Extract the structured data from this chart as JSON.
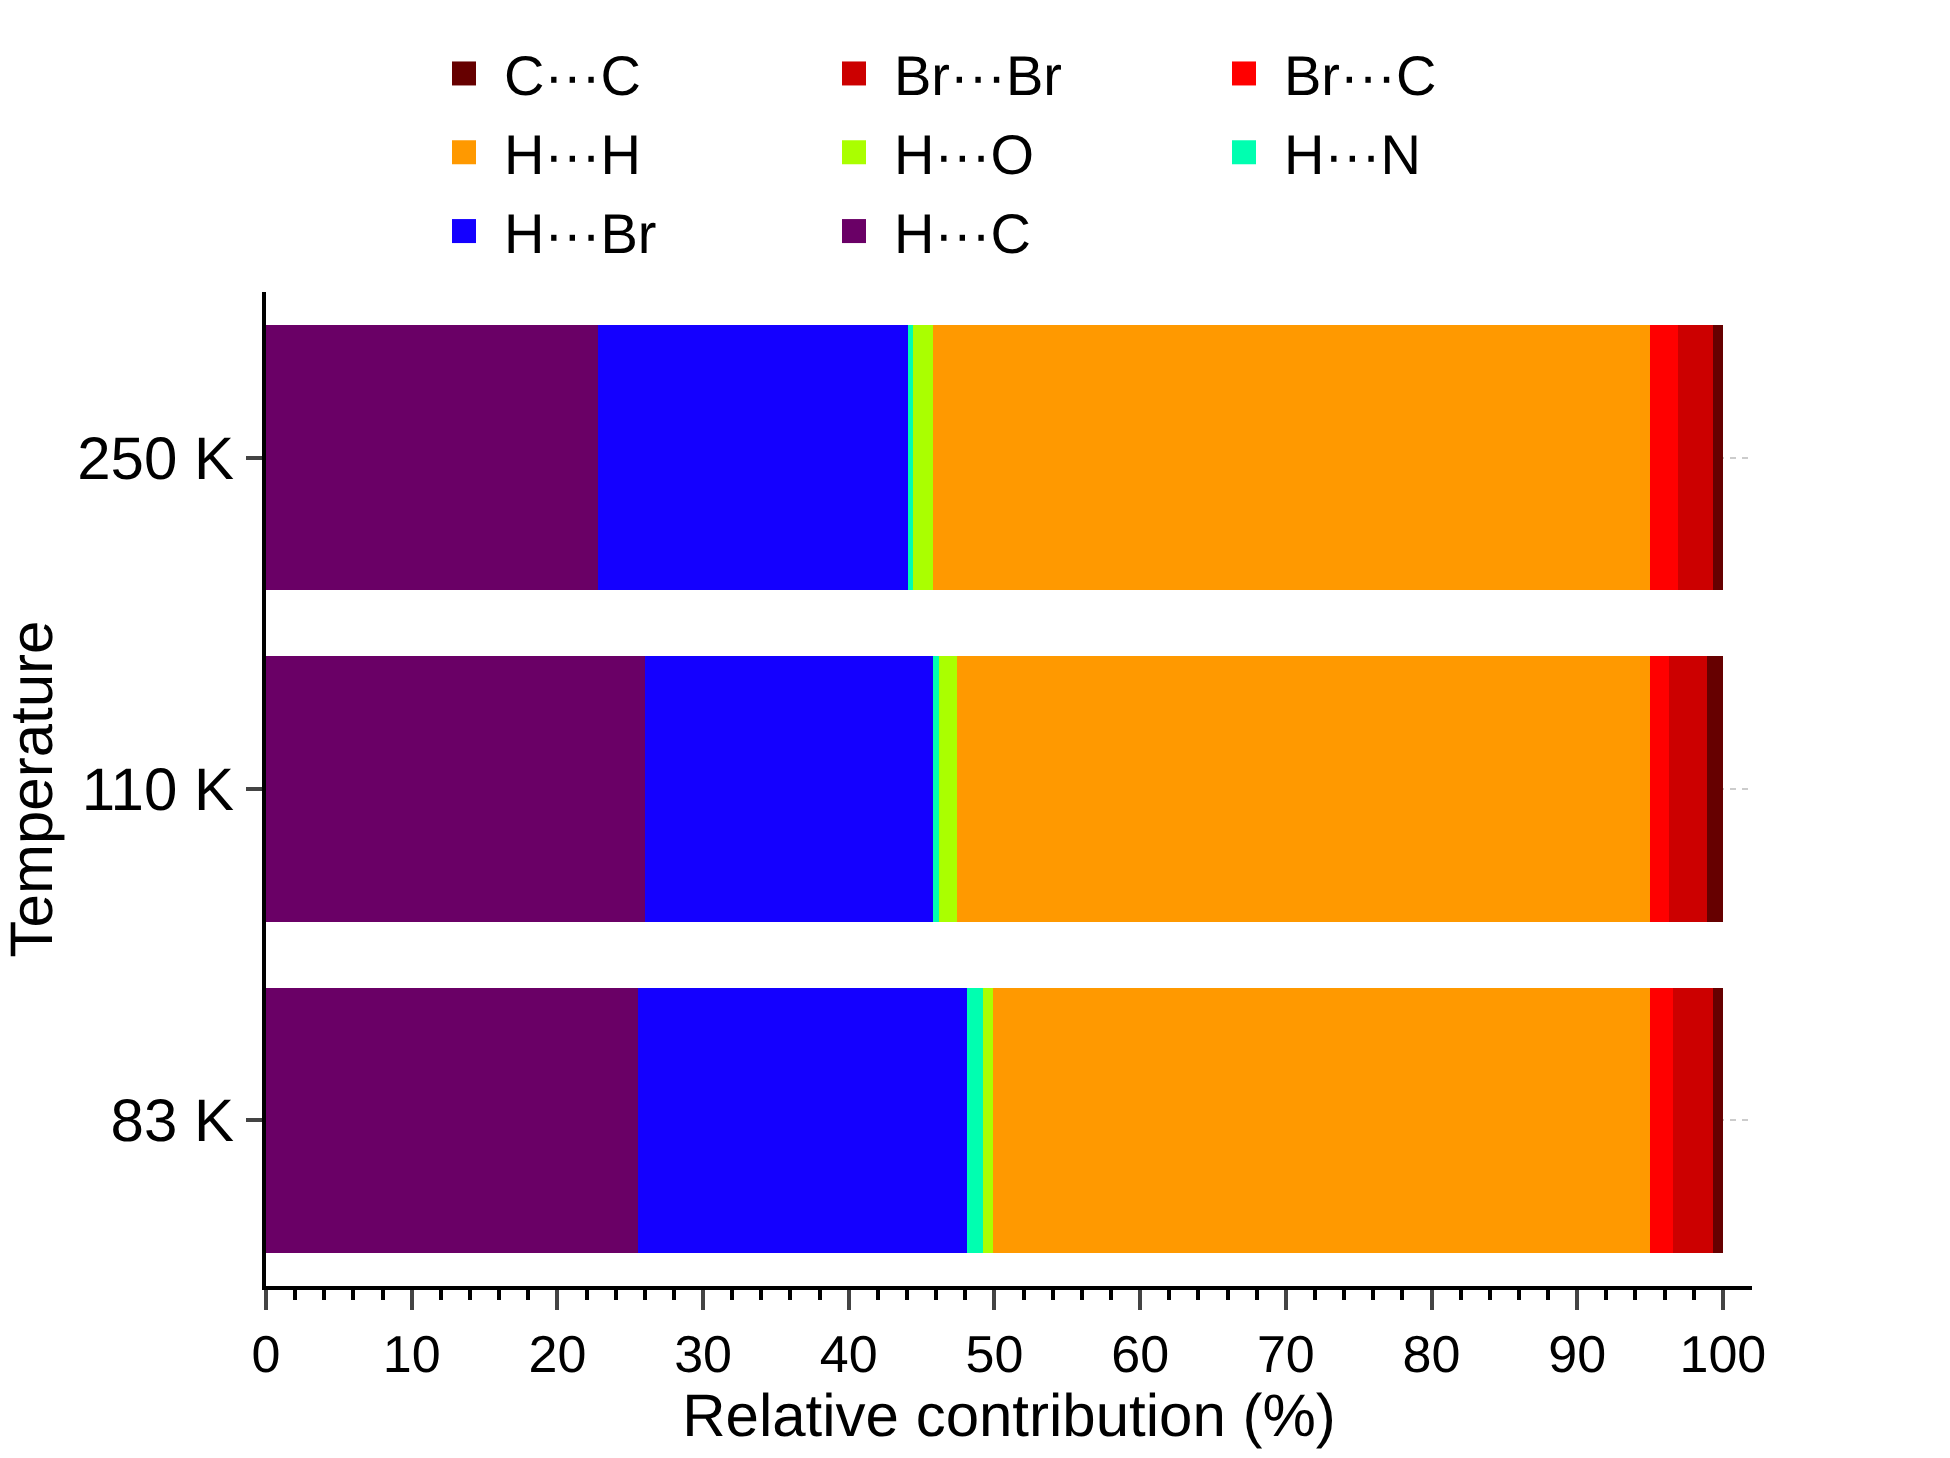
{
  "chart_data": {
    "type": "bar",
    "orientation": "horizontal",
    "stacked": true,
    "xlabel": "Relative contribution (%)",
    "ylabel": "Temperature",
    "categories": [
      "250 K",
      "110 K",
      "83 K"
    ],
    "series": [
      {
        "name": "H···C",
        "color": "#6a0066",
        "values": [
          22.8,
          26.0,
          25.5
        ]
      },
      {
        "name": "H···Br",
        "color": "#1400ff",
        "values": [
          21.3,
          19.8,
          22.6
        ]
      },
      {
        "name": "H···N",
        "color": "#00ffb0",
        "values": [
          0.3,
          0.4,
          1.1
        ]
      },
      {
        "name": "H···O",
        "color": "#aaff00",
        "values": [
          1.4,
          1.2,
          0.7
        ]
      },
      {
        "name": "H···H",
        "color": "#ff9900",
        "values": [
          49.2,
          47.6,
          45.1
        ]
      },
      {
        "name": "Br···C",
        "color": "#ff0000",
        "values": [
          1.9,
          1.3,
          1.6
        ]
      },
      {
        "name": "Br···Br",
        "color": "#cc0000",
        "values": [
          2.4,
          2.6,
          2.7
        ]
      },
      {
        "name": "C···C",
        "color": "#660000",
        "values": [
          0.7,
          1.1,
          0.7
        ]
      }
    ],
    "xlim": [
      0,
      102
    ],
    "xticks": [
      0,
      {
        "value": 2,
        "label": null
      },
      {
        "value": 4,
        "label": null
      },
      {
        "value": 6,
        "label": null
      },
      {
        "value": 8,
        "label": null
      },
      10,
      {
        "value": 12,
        "label": null
      },
      {
        "value": 14,
        "label": null
      },
      {
        "value": 16,
        "label": null
      },
      {
        "value": 18,
        "label": null
      },
      20,
      {
        "value": 22,
        "label": null
      },
      {
        "value": 24,
        "label": null
      },
      {
        "value": 26,
        "label": null
      },
      {
        "value": 28,
        "label": null
      },
      30,
      {
        "value": 32,
        "label": null
      },
      {
        "value": 34,
        "label": null
      },
      {
        "value": 36,
        "label": null
      },
      {
        "value": 38,
        "label": null
      },
      40,
      {
        "value": 42,
        "label": null
      },
      {
        "value": 44,
        "label": null
      },
      {
        "value": 46,
        "label": null
      },
      {
        "value": 48,
        "label": null
      },
      50,
      {
        "value": 52,
        "label": null
      },
      {
        "value": 54,
        "label": null
      },
      {
        "value": 56,
        "label": null
      },
      {
        "value": 58,
        "label": null
      },
      60,
      {
        "value": 62,
        "label": null
      },
      {
        "value": 64,
        "label": null
      },
      {
        "value": 66,
        "label": null
      },
      {
        "value": 68,
        "label": null
      },
      70,
      {
        "value": 72,
        "label": null
      },
      {
        "value": 74,
        "label": null
      },
      {
        "value": 76,
        "label": null
      },
      {
        "value": 78,
        "label": null
      },
      80,
      {
        "value": 82,
        "label": null
      },
      {
        "value": 84,
        "label": null
      },
      {
        "value": 86,
        "label": null
      },
      {
        "value": 88,
        "label": null
      },
      90,
      {
        "value": 92,
        "label": null
      },
      {
        "value": 94,
        "label": null
      },
      {
        "value": 96,
        "label": null
      },
      {
        "value": 98,
        "label": null
      },
      100
    ],
    "grid": "y",
    "legend": "top"
  }
}
